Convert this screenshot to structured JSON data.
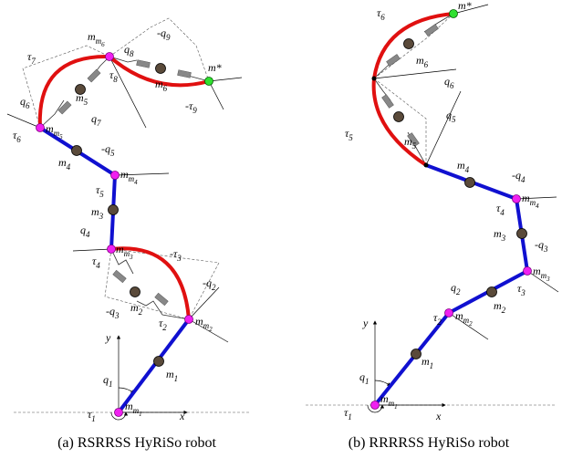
{
  "figure_a": {
    "caption": "(a) RSRRSS HyRiSo robot",
    "labels": [
      {
        "t": "m",
        "s": "m",
        "ss": "1"
      },
      {
        "t": "τ",
        "s": "1"
      },
      {
        "t": "q",
        "s": "1"
      },
      {
        "t": "x"
      },
      {
        "t": "y"
      },
      {
        "t": "m",
        "s": "1"
      },
      {
        "t": "m",
        "s": "m",
        "ss": "2"
      },
      {
        "t": "τ",
        "s": "2"
      },
      {
        "t": "-q",
        "s": "2"
      },
      {
        "t": "-q",
        "s": "3"
      },
      {
        "t": "-τ",
        "s": "3"
      },
      {
        "t": "m",
        "s": "2"
      },
      {
        "t": "q",
        "s": "4"
      },
      {
        "t": "τ",
        "s": "4"
      },
      {
        "t": "m",
        "s": "m",
        "ss": "3"
      },
      {
        "t": "m",
        "s": "3"
      },
      {
        "t": "τ",
        "s": "5"
      },
      {
        "t": "-q",
        "s": "5"
      },
      {
        "t": "m",
        "s": "m",
        "ss": "4"
      },
      {
        "t": "m",
        "s": "4"
      },
      {
        "t": "τ",
        "s": "6"
      },
      {
        "t": "q",
        "s": "6"
      },
      {
        "t": "m",
        "s": "m",
        "ss": "5"
      },
      {
        "t": "m",
        "s": "5"
      },
      {
        "t": "q",
        "s": "7"
      },
      {
        "t": "τ",
        "s": "7"
      },
      {
        "t": "m",
        "s": "m",
        "ss": "6"
      },
      {
        "t": "τ",
        "s": "8"
      },
      {
        "t": "q",
        "s": "8"
      },
      {
        "t": "-q",
        "s": "9"
      },
      {
        "t": "m",
        "s": "6"
      },
      {
        "t": "-τ",
        "s": "9"
      },
      {
        "t": "m*"
      }
    ]
  },
  "figure_b": {
    "caption": "(b) RRRRSS HyRiSo robot",
    "labels": [
      {
        "t": "m",
        "s": "m",
        "ss": "1"
      },
      {
        "t": "τ",
        "s": "1"
      },
      {
        "t": "q",
        "s": "1"
      },
      {
        "t": "x"
      },
      {
        "t": "y"
      },
      {
        "t": "m",
        "s": "1"
      },
      {
        "t": "m",
        "s": "m",
        "ss": "2"
      },
      {
        "t": "τ",
        "s": "2"
      },
      {
        "t": "q",
        "s": "2"
      },
      {
        "t": "m",
        "s": "2"
      },
      {
        "t": "τ",
        "s": "3"
      },
      {
        "t": "m",
        "s": "m",
        "ss": "3"
      },
      {
        "t": "-q",
        "s": "3"
      },
      {
        "t": "m",
        "s": "3"
      },
      {
        "t": "τ",
        "s": "4"
      },
      {
        "t": "-q",
        "s": "4"
      },
      {
        "t": "m",
        "s": "m",
        "ss": "4"
      },
      {
        "t": "m",
        "s": "4"
      },
      {
        "t": "τ",
        "s": "5"
      },
      {
        "t": "q",
        "s": "5"
      },
      {
        "t": "m",
        "s": "5"
      },
      {
        "t": "q",
        "s": "6"
      },
      {
        "t": "τ",
        "s": "6"
      },
      {
        "t": "m*"
      },
      {
        "t": "m",
        "s": "6"
      }
    ]
  }
}
